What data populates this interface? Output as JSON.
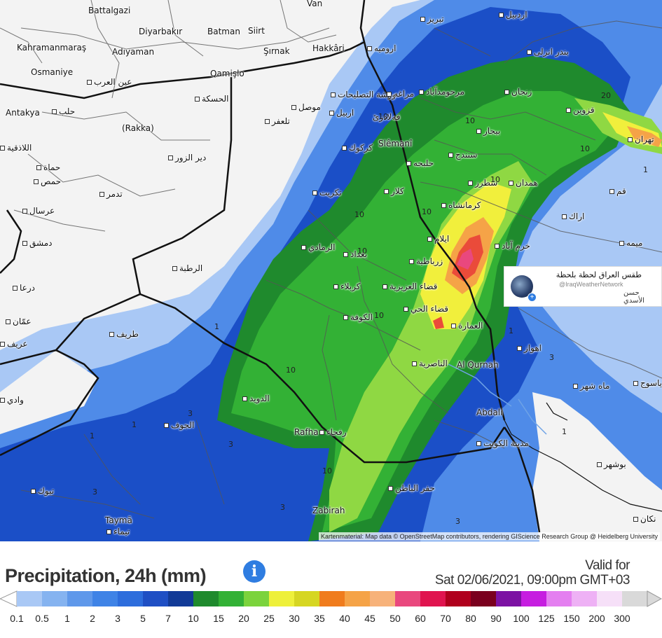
{
  "map": {
    "attribution": "Kartenmaterial: Map data © OpenStreetMap contributors, rendering GIScience Research Group @ Heidelberg University",
    "places": [
      {
        "name": "Battalgazi",
        "dot": false
      },
      {
        "name": "Van",
        "dot": false
      },
      {
        "name": "تبريز",
        "dot": true
      },
      {
        "name": "اردبيل",
        "dot": true
      },
      {
        "name": "Diyarbakır",
        "dot": false
      },
      {
        "name": "Batman",
        "dot": false
      },
      {
        "name": "Siirt",
        "dot": false
      },
      {
        "name": "Kahramanmaraş",
        "dot": false
      },
      {
        "name": "Adıyaman",
        "dot": false
      },
      {
        "name": "Şırnak",
        "dot": false
      },
      {
        "name": "Hakkâri",
        "dot": false
      },
      {
        "name": "ارومیه",
        "dot": true
      },
      {
        "name": "بندر انزلی",
        "dot": true
      },
      {
        "name": "Osmaniye",
        "dot": false
      },
      {
        "name": "عين العرب",
        "dot": true
      },
      {
        "name": "Qamişlo",
        "dot": false
      },
      {
        "name": "ورشة التصليحات",
        "dot": true
      },
      {
        "name": "مراغه",
        "dot": true
      },
      {
        "name": "مرحومدآباد",
        "dot": true
      },
      {
        "name": "زنجان",
        "dot": true
      },
      {
        "name": "Antakya",
        "dot": false
      },
      {
        "name": "حلب",
        "dot": true
      },
      {
        "name": "الحسكة",
        "dot": true
      },
      {
        "name": "موصل",
        "dot": true
      },
      {
        "name": "اربيل",
        "dot": true
      },
      {
        "name": "قەلادزێ",
        "dot": false
      },
      {
        "name": "قزوین",
        "dot": true
      },
      {
        "name": "(Rakka)",
        "dot": false
      },
      {
        "name": "تلعفر",
        "dot": true
      },
      {
        "name": "Slêmanî",
        "dot": false
      },
      {
        "name": "بيجار",
        "dot": true
      },
      {
        "name": "اللاذقية",
        "dot": true
      },
      {
        "name": "حماة",
        "dot": true
      },
      {
        "name": "دير الزور",
        "dot": true
      },
      {
        "name": "كركوك",
        "dot": true
      },
      {
        "name": "حلبجه",
        "dot": true
      },
      {
        "name": "سنندج",
        "dot": true
      },
      {
        "name": "تهران",
        "dot": true
      },
      {
        "name": "حمص",
        "dot": true
      },
      {
        "name": "شطرز",
        "dot": true
      },
      {
        "name": "همدان",
        "dot": true
      },
      {
        "name": "تدمر",
        "dot": true
      },
      {
        "name": "تكريت",
        "dot": true
      },
      {
        "name": "كلار",
        "dot": true
      },
      {
        "name": "قم",
        "dot": true
      },
      {
        "name": "عرسال",
        "dot": true
      },
      {
        "name": "كرمانشاه",
        "dot": true
      },
      {
        "name": "اراك",
        "dot": true
      },
      {
        "name": "دمشق",
        "dot": true
      },
      {
        "name": "الرمادي",
        "dot": true
      },
      {
        "name": "بغداد",
        "dot": true
      },
      {
        "name": "ايلام",
        "dot": true
      },
      {
        "name": "خرم آباد",
        "dot": true
      },
      {
        "name": "ميمه",
        "dot": true
      },
      {
        "name": "الرطبة",
        "dot": true
      },
      {
        "name": "زرباطية",
        "dot": true
      },
      {
        "name": "كربلاء",
        "dot": true
      },
      {
        "name": "قضاء العزيزية",
        "dot": true
      },
      {
        "name": "قضاء الحي",
        "dot": true
      },
      {
        "name": "درعا",
        "dot": true
      },
      {
        "name": "الكوفة",
        "dot": true
      },
      {
        "name": "عمّان",
        "dot": true
      },
      {
        "name": "العمارة",
        "dot": true
      },
      {
        "name": "طريف",
        "dot": true
      },
      {
        "name": "اهواز",
        "dot": true
      },
      {
        "name": "الناصرية",
        "dot": true
      },
      {
        "name": "Al Qurnah",
        "dot": false
      },
      {
        "name": "ياسوج",
        "dot": true
      },
      {
        "name": "عريف",
        "dot": true
      },
      {
        "name": "وادي",
        "dot": true
      },
      {
        "name": "ماه شهر",
        "dot": true
      },
      {
        "name": "الدويد",
        "dot": true
      },
      {
        "name": "الجوف",
        "dot": true
      },
      {
        "name": "Abdali",
        "dot": false
      },
      {
        "name": "Rafha",
        "dot": false
      },
      {
        "name": "رفحاء",
        "dot": true
      },
      {
        "name": "مدينة الكويت",
        "dot": true
      },
      {
        "name": "بوشهر",
        "dot": true
      },
      {
        "name": "تبوك",
        "dot": true
      },
      {
        "name": "حفر الباطن",
        "dot": true
      },
      {
        "name": "Zabirah",
        "dot": false
      },
      {
        "name": "Taymā",
        "dot": false
      },
      {
        "name": "تيماء",
        "dot": true
      },
      {
        "name": "نكان",
        "dot": true
      }
    ],
    "isolines": [
      "20",
      "10",
      "10",
      "10",
      "10",
      "10",
      "10",
      "10",
      "10",
      "10",
      "10",
      "1",
      "1",
      "1",
      "1",
      "1",
      "1",
      "3",
      "3",
      "3",
      "3",
      "3",
      "3"
    ],
    "colors": {
      "base": "#f3f3f3",
      "light_blue": "#a9c8f5",
      "blue": "#4f8be8",
      "dark_blue": "#1b4fc7",
      "dark_green": "#1f8a2d",
      "green": "#33b135",
      "light_green": "#8fd843",
      "yellow": "#f1ef3c",
      "orange": "#f5a347",
      "red": "#ea4b3a",
      "pink": "#e9487e"
    }
  },
  "watermark": {
    "name": "طقس العراق لحظة بلحظة",
    "handle": "@IraqWeatherNetwork",
    "signature": "حسن الأسدي"
  },
  "legend": {
    "title": "Precipitation, 24h (mm)",
    "info_icon": "info-icon",
    "valid_label": "Valid for",
    "valid_date": "Sat 02/06/2021, 09:00pm GMT+03",
    "scale": [
      {
        "label": "0.1",
        "color": "#a9c8f5"
      },
      {
        "label": "0.5",
        "color": "#85b3f0"
      },
      {
        "label": "1",
        "color": "#5f98ea"
      },
      {
        "label": "2",
        "color": "#3f83e6"
      },
      {
        "label": "3",
        "color": "#2d6ddc"
      },
      {
        "label": "5",
        "color": "#1f4fc4"
      },
      {
        "label": "7",
        "color": "#123a97"
      },
      {
        "label": "10",
        "color": "#1f8a2d"
      },
      {
        "label": "15",
        "color": "#33b135"
      },
      {
        "label": "20",
        "color": "#7bd33c"
      },
      {
        "label": "25",
        "color": "#eef03a"
      },
      {
        "label": "30",
        "color": "#d6d622"
      },
      {
        "label": "35",
        "color": "#f07c1d"
      },
      {
        "label": "40",
        "color": "#f5a347"
      },
      {
        "label": "45",
        "color": "#f7b27a"
      },
      {
        "label": "50",
        "color": "#e9487e"
      },
      {
        "label": "60",
        "color": "#e0144f"
      },
      {
        "label": "70",
        "color": "#b0001d"
      },
      {
        "label": "80",
        "color": "#7a001e"
      },
      {
        "label": "90",
        "color": "#7c12a3"
      },
      {
        "label": "100",
        "color": "#c61ee0"
      },
      {
        "label": "125",
        "color": "#e47ff0"
      },
      {
        "label": "150",
        "color": "#eeb1f5"
      },
      {
        "label": "200",
        "color": "#f6e0f8"
      },
      {
        "label": "300",
        "color": "#d9d9d9"
      }
    ]
  }
}
